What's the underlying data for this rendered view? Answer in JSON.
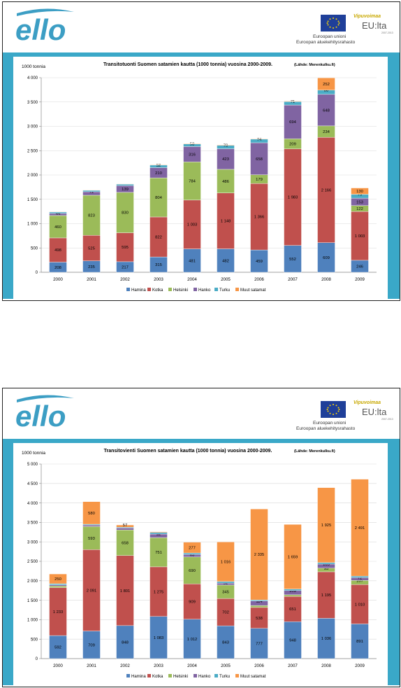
{
  "header": {
    "logo_text": "ello",
    "eu_line1": "Euroopan unioni",
    "eu_line2": "Euroopan aluekehitysrahasto",
    "vipu_line1": "Vipuvoimaa",
    "vipu_line2": "EU:lta",
    "vipu_line3": "2007-2013"
  },
  "colors": {
    "band": "#3aa8c8",
    "logo": "#3c9ec4",
    "Hamina": "#4f81bd",
    "Kotka": "#c0504d",
    "Helsinki": "#9bbb59",
    "Hanko": "#8064a2",
    "Turku": "#4bacc6",
    "Muut satamat": "#f79646"
  },
  "chart_data": [
    {
      "type": "bar",
      "stacked": true,
      "title": "Transitotuonti Suomen satamien kautta (1000 tonnia) vuosina 2000-2009.",
      "source": "(Lähde: Merenkulku.fi)",
      "ylabel": "1000 tonnia",
      "ylim": [
        0,
        4000
      ],
      "yticks": [
        "0",
        "500",
        "1 000",
        "1 500",
        "2 000",
        "2 500",
        "3 000",
        "3 500",
        "4 000"
      ],
      "ytick_values": [
        0,
        500,
        1000,
        1500,
        2000,
        2500,
        3000,
        3500,
        4000
      ],
      "categories": [
        "2000",
        "2001",
        "2002",
        "2003",
        "2004",
        "2005",
        "2006",
        "2007",
        "2008",
        "2009"
      ],
      "legend_position": "bottom",
      "series": [
        {
          "name": "Hamina",
          "values": [
            208,
            235,
            217,
            315,
            481,
            482,
            459,
            552,
            609,
            246
          ],
          "labels": [
            "208",
            "235",
            "217",
            "315",
            "481",
            "482",
            "459",
            "552",
            "609",
            "246"
          ]
        },
        {
          "name": "Kotka",
          "values": [
            498,
            525,
            595,
            822,
            1003,
            1148,
            1366,
            1983,
            2166,
            1003
          ],
          "labels": [
            "498",
            "525",
            "595",
            "822",
            "1 003",
            "1 148",
            "1 366",
            "1 983",
            "2 166",
            "1 003"
          ]
        },
        {
          "name": "Helsinki",
          "values": [
            460,
            823,
            830,
            804,
            784,
            486,
            179,
            209,
            234,
            122
          ],
          "labels": [
            "460",
            "823",
            "830",
            "804",
            "784",
            "486",
            "179",
            "209",
            "234",
            "122"
          ]
        },
        {
          "name": "Hanko",
          "values": [
            44,
            72,
            139,
            210,
            316,
            423,
            658,
            694,
            648,
            153
          ],
          "labels": [
            "44",
            "72",
            "139",
            "210",
            "316",
            "423",
            "658",
            "694",
            "648",
            "153"
          ]
        },
        {
          "name": "Turku",
          "values": [
            30,
            30,
            30,
            52,
            53,
            70,
            74,
            71,
            88,
            79
          ],
          "labels": [
            "",
            "",
            "",
            "52",
            "53",
            "70",
            "74",
            "71",
            "88",
            "79"
          ]
        },
        {
          "name": "Muut satamat",
          "values": [
            5,
            5,
            5,
            10,
            10,
            10,
            10,
            10,
            252,
            130
          ],
          "labels": [
            "",
            "",
            "",
            "",
            "",
            "",
            "",
            "",
            "252",
            "130"
          ]
        }
      ]
    },
    {
      "type": "bar",
      "stacked": true,
      "title": "Transitovienti Suomen satamien kautta (1000 tonnia) vuosina 2000-2009.",
      "source": "(Lähde: Merenkulku.fi)",
      "ylabel": "1000 tonnia",
      "ylim": [
        0,
        5000
      ],
      "yticks": [
        "0",
        "500",
        "1 000",
        "1 500",
        "2 000",
        "2 500",
        "3 000",
        "3 500",
        "4 000",
        "4 500",
        "5 000"
      ],
      "ytick_values": [
        0,
        500,
        1000,
        1500,
        2000,
        2500,
        3000,
        3500,
        4000,
        4500,
        5000
      ],
      "categories": [
        "2000",
        "2001",
        "2002",
        "2003",
        "2004",
        "2005",
        "2006",
        "2007",
        "2008",
        "2009"
      ],
      "legend_position": "bottom",
      "series": [
        {
          "name": "Hamina",
          "values": [
            592,
            709,
            848,
            1083,
            1012,
            843,
            777,
            948,
            1036,
            891
          ],
          "labels": [
            "592",
            "709",
            "848",
            "1 083",
            "1 012",
            "843",
            "777",
            "948",
            "1 036",
            "891"
          ]
        },
        {
          "name": "Kotka",
          "values": [
            1233,
            2091,
            1801,
            1275,
            909,
            702,
            538,
            651,
            1195,
            1010
          ],
          "labels": [
            "1 233",
            "2 091",
            "1 801",
            "1 275",
            "909",
            "702",
            "538",
            "651",
            "1 195",
            "1 010"
          ]
        },
        {
          "name": "Helsinki",
          "values": [
            40,
            593,
            658,
            751,
            690,
            345,
            50,
            40,
            93,
            107
          ],
          "labels": [
            "",
            "593",
            "658",
            "751",
            "690",
            "345",
            "",
            "",
            "93",
            "107"
          ]
        },
        {
          "name": "Hanko",
          "values": [
            30,
            40,
            50,
            92,
            63,
            51,
            114,
            109,
            105,
            72
          ],
          "labels": [
            "",
            "",
            "",
            "92",
            "63",
            "51",
            "114",
            "109",
            "105",
            "72"
          ]
        },
        {
          "name": "Turku",
          "values": [
            30,
            20,
            20,
            40,
            40,
            40,
            30,
            40,
            40,
            40
          ],
          "labels": [
            "",
            "",
            "",
            "",
            "",
            "",
            "",
            "",
            "",
            ""
          ]
        },
        {
          "name": "Muut satamat",
          "values": [
            250,
            580,
            57,
            20,
            277,
            1016,
            2335,
            1659,
            1925,
            2491
          ],
          "labels": [
            "250",
            "580",
            "57",
            "",
            "277",
            "1 016",
            "2 335",
            "1 659",
            "1 925",
            "2 491"
          ]
        }
      ]
    }
  ]
}
